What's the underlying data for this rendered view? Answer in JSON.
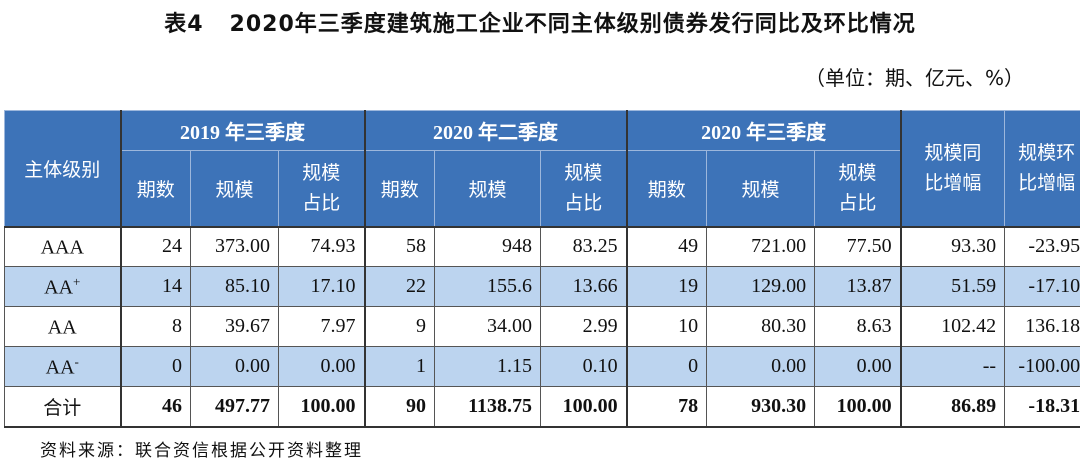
{
  "title": "表4   2020年三季度建筑施工企业不同主体级别债券发行同比及环比情况",
  "unit": "（单位：期、亿元、%）",
  "headers": {
    "rating": "主体级别",
    "group1": "2019 年三季度",
    "group2": "2020 年二季度",
    "group3": "2020 年三季度",
    "count": "期数",
    "scale": "规模",
    "share_l1": "规模",
    "share_l2": "占比",
    "yoy_l1": "规模同",
    "yoy_l2": "比增幅",
    "qoq_l1": "规模环",
    "qoq_l2": "比增幅"
  },
  "rows": [
    {
      "name": "AAA",
      "sup": "",
      "c1": "24",
      "s1": "373.00",
      "p1": "74.93",
      "c2": "58",
      "s2": "948",
      "p2": "83.25",
      "c3": "49",
      "s3": "721.00",
      "p3": "77.50",
      "yoy": "93.30",
      "qoq": "-23.95"
    },
    {
      "name": "AA",
      "sup": "+",
      "c1": "14",
      "s1": "85.10",
      "p1": "17.10",
      "c2": "22",
      "s2": "155.6",
      "p2": "13.66",
      "c3": "19",
      "s3": "129.00",
      "p3": "13.87",
      "yoy": "51.59",
      "qoq": "-17.10"
    },
    {
      "name": "AA",
      "sup": "",
      "c1": "8",
      "s1": "39.67",
      "p1": "7.97",
      "c2": "9",
      "s2": "34.00",
      "p2": "2.99",
      "c3": "10",
      "s3": "80.30",
      "p3": "8.63",
      "yoy": "102.42",
      "qoq": "136.18"
    },
    {
      "name": "AA",
      "sup": "-",
      "c1": "0",
      "s1": "0.00",
      "p1": "0.00",
      "c2": "1",
      "s2": "1.15",
      "p2": "0.10",
      "c3": "0",
      "s3": "0.00",
      "p3": "0.00",
      "yoy": "--",
      "qoq": "-100.00"
    },
    {
      "name": "合计",
      "sup": "",
      "c1": "46",
      "s1": "497.77",
      "p1": "100.00",
      "c2": "90",
      "s2": "1138.75",
      "p2": "100.00",
      "c3": "78",
      "s3": "930.30",
      "p3": "100.00",
      "yoy": "86.89",
      "qoq": "-18.31"
    }
  ],
  "source": "资料来源：联合资信根据公开资料整理",
  "colors": {
    "header_bg": "#3d73b8",
    "alt_row_bg": "#bcd4ef"
  }
}
